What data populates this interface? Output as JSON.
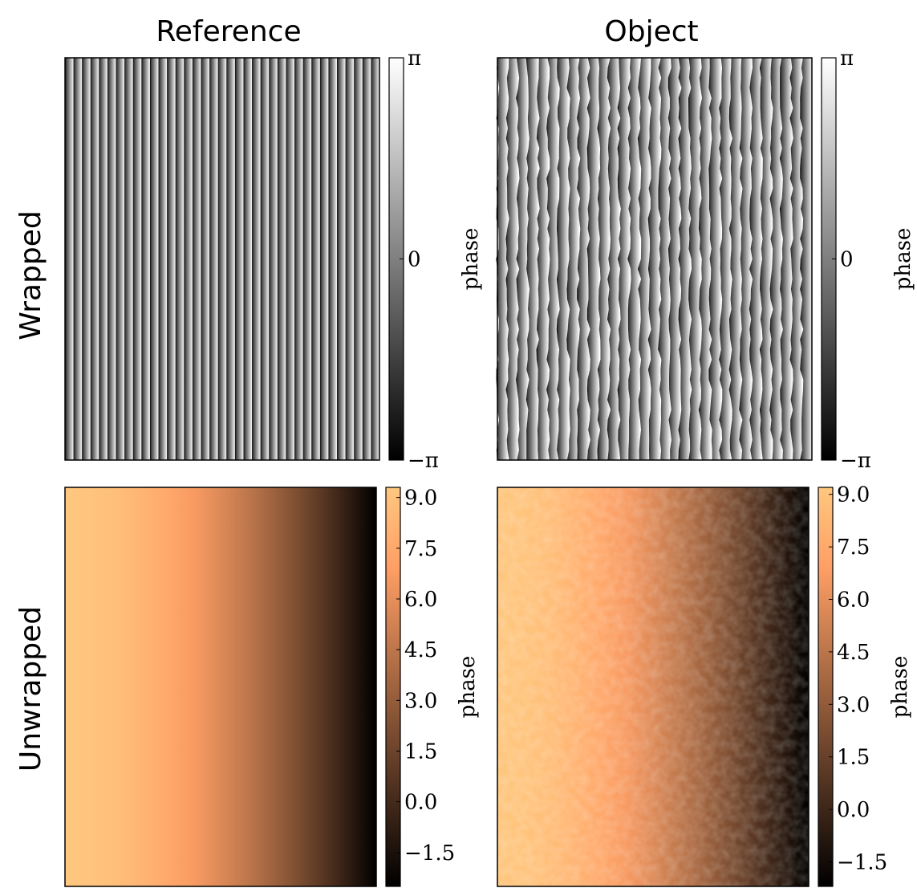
{
  "figure": {
    "column_titles": [
      "Reference",
      "Object"
    ],
    "row_titles": [
      "Wrapped",
      "Unwrapped"
    ]
  },
  "colors": {
    "copper_low": "#000000",
    "copper_high": "#ffc77f",
    "gray_low": "#000000",
    "gray_high": "#ffffff"
  },
  "chart_data": [
    {
      "panel": "reference-wrapped",
      "type": "heatmap",
      "title": "Reference",
      "row": "Wrapped",
      "colormap": "gray",
      "fringe_count": 37,
      "fringe_noise": false,
      "colorbar": {
        "label": "phase",
        "range": [
          -3.1416,
          3.1416
        ],
        "ticks": [
          -3.1416,
          0,
          3.1416
        ],
        "tick_labels": [
          "−π",
          "0",
          "π"
        ]
      }
    },
    {
      "panel": "object-wrapped",
      "type": "heatmap",
      "title": "Object",
      "row": "Wrapped",
      "colormap": "gray",
      "fringe_count": 31,
      "fringe_noise": true,
      "colorbar": {
        "label": "phase",
        "range": [
          -3.1416,
          3.1416
        ],
        "ticks": [
          -3.1416,
          0,
          3.1416
        ],
        "tick_labels": [
          "−π",
          "0",
          "π"
        ]
      }
    },
    {
      "panel": "reference-unwrapped",
      "type": "heatmap",
      "title": "Reference",
      "row": "Unwrapped",
      "colormap": "copper",
      "gradient": {
        "direction": "left-to-right",
        "from_value": 9.3,
        "to_value": -2.5
      },
      "texture": false,
      "colorbar": {
        "label": "phase",
        "range": [
          -2.5,
          9.3
        ],
        "ticks": [
          -1.5,
          0.0,
          1.5,
          3.0,
          4.5,
          6.0,
          7.5,
          9.0
        ],
        "tick_labels": [
          "−1.5",
          "0.0",
          "1.5",
          "3.0",
          "4.5",
          "6.0",
          "7.5",
          "9.0"
        ]
      }
    },
    {
      "panel": "object-unwrapped",
      "type": "heatmap",
      "title": "Object",
      "row": "Unwrapped",
      "colormap": "copper",
      "gradient": {
        "direction": "left-to-right",
        "from_value": 9.2,
        "to_value": -2.2
      },
      "texture": true,
      "colorbar": {
        "label": "phase",
        "range": [
          -2.2,
          9.2
        ],
        "ticks": [
          -1.5,
          0.0,
          1.5,
          3.0,
          4.5,
          6.0,
          7.5,
          9.0
        ],
        "tick_labels": [
          "−1.5",
          "0.0",
          "1.5",
          "3.0",
          "4.5",
          "6.0",
          "7.5",
          "9.0"
        ]
      }
    }
  ]
}
